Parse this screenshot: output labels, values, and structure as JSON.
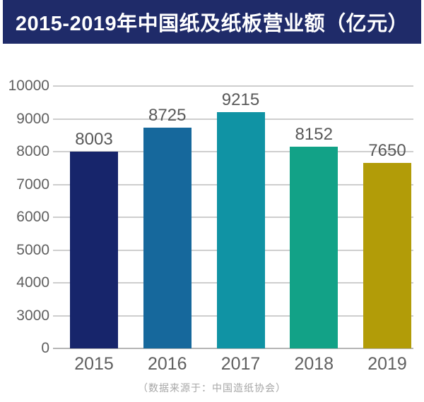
{
  "title": "2015-2019年中国纸及纸板营业额（亿元）",
  "source_note": "（数据来源于：中国造纸协会）",
  "colors": {
    "banner_bg": "#1f2b69",
    "banner_text": "#ffffff",
    "grid_line": "#cecece",
    "axis_line": "#b5b5b5",
    "tick_text": "#606060",
    "value_text": "#595959",
    "source_text": "#a6a6a6"
  },
  "chart_data": {
    "type": "bar",
    "title": "2015-2019年中国纸及纸板营业额（亿元）",
    "categories": [
      "2015",
      "2016",
      "2017",
      "2018",
      "2019"
    ],
    "values": [
      8003,
      8725,
      9215,
      8152,
      7650
    ],
    "bar_colors": [
      "#17256b",
      "#16689c",
      "#1093a4",
      "#12a287",
      "#b29c08"
    ],
    "yticks": [
      0,
      3000,
      4000,
      5000,
      6000,
      7000,
      8000,
      9000,
      10000
    ],
    "ylim": [
      0,
      10000
    ],
    "xlabel": "",
    "ylabel": "",
    "grid": true,
    "legend": false,
    "value_labels": true,
    "source": "（数据来源于：中国造纸协会）",
    "axis_note": "y-axis ticks evenly spaced; 0–3000 segment compressed to one interval"
  }
}
